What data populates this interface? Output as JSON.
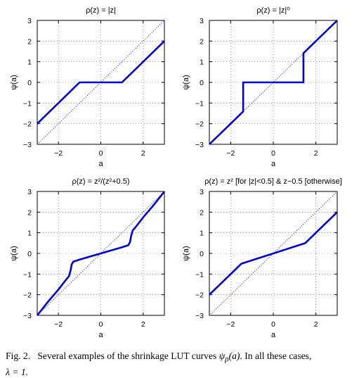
{
  "chart_data": [
    {
      "type": "line",
      "title": "ρ(z) = |z|",
      "xlabel": "a",
      "ylabel": "ψ(a)",
      "xlim": [
        -3,
        3
      ],
      "ylim": [
        -3,
        3
      ],
      "xticks": [
        -2,
        0,
        2
      ],
      "yticks": [
        -3,
        -2,
        -1,
        0,
        1,
        2,
        3
      ],
      "grid": true,
      "series": [
        {
          "style": "solid",
          "color": "#0000dd",
          "x": [
            -3,
            -1,
            1,
            3
          ],
          "y": [
            -2,
            0,
            0,
            2
          ]
        },
        {
          "style": "dotted",
          "color": "#0000dd",
          "x": [
            -3,
            3
          ],
          "y": [
            -3,
            3
          ]
        }
      ]
    },
    {
      "type": "line",
      "title": "ρ(z) = |z|⁰",
      "xlabel": "a",
      "ylabel": "ψ(a)",
      "xlim": [
        -3,
        3
      ],
      "ylim": [
        -3,
        3
      ],
      "xticks": [
        -2,
        0,
        2
      ],
      "yticks": [
        -3,
        -2,
        -1,
        0,
        1,
        2,
        3
      ],
      "grid": true,
      "series": [
        {
          "style": "solid",
          "color": "#0000dd",
          "x": [
            -3,
            -1.414,
            -1.414,
            1.414,
            1.414,
            3
          ],
          "y": [
            -3,
            -1.414,
            0,
            0,
            1.414,
            3
          ]
        },
        {
          "style": "dotted",
          "color": "#0000dd",
          "x": [
            -3,
            3
          ],
          "y": [
            -3,
            3
          ]
        }
      ]
    },
    {
      "type": "line",
      "title": "ρ(z) = z²/(z²+0.5)",
      "xlabel": "a",
      "ylabel": "ψ(a)",
      "xlim": [
        -3,
        3
      ],
      "ylim": [
        -3,
        3
      ],
      "xticks": [
        -2,
        0,
        2
      ],
      "yticks": [
        -3,
        -2,
        -1,
        0,
        1,
        2,
        3
      ],
      "grid": true,
      "series": [
        {
          "style": "solid",
          "color": "#0000dd",
          "x": [
            -3,
            -2.5,
            -2,
            -1.7,
            -1.5,
            -1.42,
            -1.38,
            -1.3,
            -1,
            -0.5,
            0,
            0.5,
            1,
            1.3,
            1.38,
            1.42,
            1.5,
            1.7,
            2,
            2.5,
            3
          ],
          "y": [
            -3,
            -2.35,
            -1.75,
            -1.35,
            -1.1,
            -0.8,
            -0.55,
            -0.4,
            -0.3,
            -0.15,
            0,
            0.15,
            0.3,
            0.4,
            0.55,
            0.8,
            1.1,
            1.35,
            1.75,
            2.35,
            3
          ]
        },
        {
          "style": "dotted",
          "color": "#0000dd",
          "x": [
            -3,
            3
          ],
          "y": [
            -3,
            3
          ]
        }
      ]
    },
    {
      "type": "line",
      "title": "ρ(z) = z² [for |z|<0.5] & z−0.5 [otherwise]",
      "xlabel": "a",
      "ylabel": "ψ(a)",
      "xlim": [
        -3,
        3
      ],
      "ylim": [
        -3,
        3
      ],
      "xticks": [
        -2,
        0,
        2
      ],
      "yticks": [
        -3,
        -2,
        -1,
        0,
        1,
        2,
        3
      ],
      "grid": true,
      "series": [
        {
          "style": "solid",
          "color": "#0000dd",
          "x": [
            -3,
            -1.5,
            1.5,
            3
          ],
          "y": [
            -2,
            -0.5,
            0.5,
            2
          ]
        },
        {
          "style": "dotted",
          "color": "#0000dd",
          "x": [
            -3,
            3
          ],
          "y": [
            -3,
            3
          ]
        }
      ]
    }
  ],
  "caption": {
    "label": "Fig. 2.",
    "text": "Several examples of the shrinkage LUT curves",
    "symbol": "ψ",
    "subscript": "ρ",
    "arg": "(a)",
    "text2": ". In all these cases,",
    "line2": "λ = 1."
  }
}
